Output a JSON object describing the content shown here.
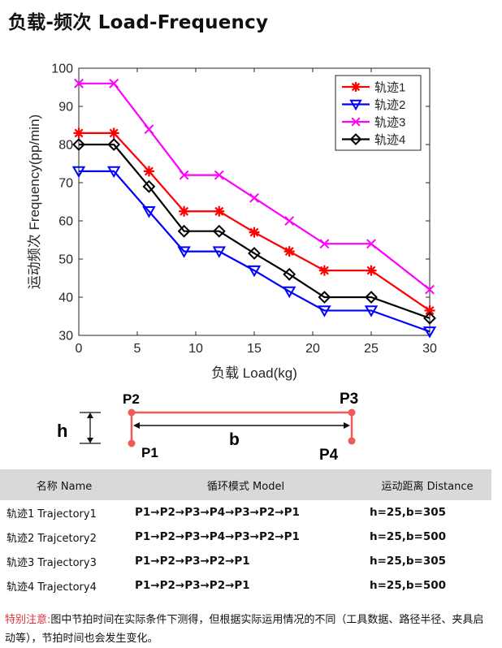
{
  "title": "负载-频次 Load-Frequency",
  "chart_data": {
    "type": "line",
    "xlabel": "负载 Load(kg)",
    "ylabel": "运动频次 Frequency(pp/min)",
    "xlim": [
      0,
      30
    ],
    "ylim": [
      30,
      100
    ],
    "xticks": [
      0,
      5,
      10,
      15,
      20,
      25,
      30
    ],
    "yticks": [
      30,
      40,
      50,
      60,
      70,
      80,
      90,
      100
    ],
    "legend_position": "top-right",
    "grid": false,
    "x": [
      0,
      3,
      6,
      9,
      12,
      15,
      18,
      21,
      25,
      30
    ],
    "series": [
      {
        "name": "轨迹1",
        "color": "#ff0000",
        "marker": "asterisk",
        "values": [
          83,
          83,
          73,
          62.5,
          62.5,
          57,
          52,
          47,
          47,
          36.5
        ]
      },
      {
        "name": "轨迹2",
        "color": "#0000ff",
        "marker": "triangle-down",
        "values": [
          73,
          73,
          62.5,
          52,
          52,
          47,
          41.5,
          36.5,
          36.5,
          31
        ]
      },
      {
        "name": "轨迹3",
        "color": "#ff00ff",
        "marker": "x",
        "values": [
          96,
          96,
          84,
          72,
          72,
          66,
          60,
          54,
          54,
          42
        ]
      },
      {
        "name": "轨迹4",
        "color": "#000000",
        "marker": "diamond",
        "values": [
          80,
          80,
          69,
          57.3,
          57.3,
          51.5,
          46,
          40,
          40,
          34.5
        ]
      }
    ]
  },
  "diagram": {
    "p1": "P1",
    "p2": "P2",
    "p3": "P3",
    "p4": "P4",
    "h": "h",
    "b": "b"
  },
  "table": {
    "headers": [
      "名称 Name",
      "循环模式 Model",
      "运动距离 Distance"
    ],
    "rows": [
      {
        "name": "轨迹1 Trajectory1",
        "model": "P1→P2→P3→P4→P3→P2→P1",
        "distance": "h=25,b=305"
      },
      {
        "name": "轨迹2 Trajcetory2",
        "model": "P1→P2→P3→P4→P3→P2→P1",
        "distance": "h=25,b=500"
      },
      {
        "name": "轨迹3 Trajectory3",
        "model": "P1→P2→P3→P2→P1",
        "distance": "h=25,b=305"
      },
      {
        "name": "轨迹4 Trajectory4",
        "model": "P1→P2→P3→P2→P1",
        "distance": "h=25,b=500"
      }
    ]
  },
  "note": {
    "label": "特别注意:",
    "text": "图中节拍时间在实际条件下测得，但根据实际运用情况的不同（工具数据、路径半径、夹具启动等），节拍时间也会发生变化。"
  }
}
